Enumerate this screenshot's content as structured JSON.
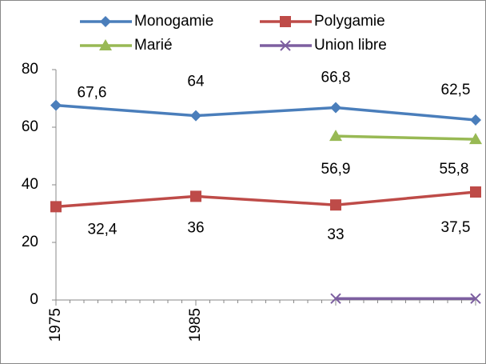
{
  "chart_data": {
    "type": "line",
    "categories": [
      "1975",
      "1985",
      null,
      null
    ],
    "series": [
      {
        "name": "Monogamie",
        "color": "#4a7ebb",
        "marker": "diamond",
        "values": [
          67.6,
          64,
          66.8,
          62.5
        ],
        "value_labels": [
          "67,6",
          "64",
          "66,8",
          "62,5"
        ]
      },
      {
        "name": "Polygamie",
        "color": "#be4b48",
        "marker": "square",
        "values": [
          32.4,
          36,
          33,
          37.5
        ],
        "value_labels": [
          "32,4",
          "36",
          "33",
          "37,5"
        ]
      },
      {
        "name": "Marié",
        "color": "#98b954",
        "marker": "triangle",
        "values": [
          null,
          null,
          56.9,
          55.8
        ],
        "value_labels": [
          null,
          null,
          "56,9",
          "55,8"
        ]
      },
      {
        "name": "Union libre",
        "color": "#7d5fa0",
        "marker": "x",
        "values": [
          null,
          null,
          0.5,
          0.5
        ]
      }
    ],
    "ylim": [
      0,
      80
    ],
    "yticks": [
      0,
      20,
      40,
      60,
      80
    ],
    "grid": false,
    "legend": "top"
  }
}
